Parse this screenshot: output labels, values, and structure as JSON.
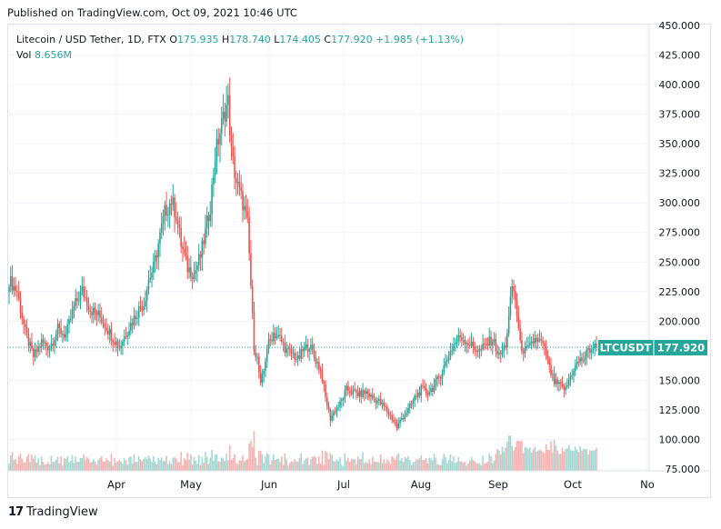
{
  "header": {
    "published": "Published on TradingView.com, Oct 09, 2021 10:46 UTC"
  },
  "legend": {
    "symbol": "Litecoin / USD Tether, 1D, FTX",
    "o_label": "O",
    "o_value": "175.935",
    "h_label": "H",
    "h_value": "178.740",
    "l_label": "L",
    "l_value": "174.405",
    "c_label": "C",
    "c_value": "177.920",
    "change": "+1.985 (+1.13%)",
    "vol_label": "Vol",
    "vol_value": "8.656M"
  },
  "footer": {
    "brand": "TradingView",
    "logo": "17"
  },
  "price_tag": {
    "symbol": "LTCUSDT",
    "price": "177.920"
  },
  "colors": {
    "up": "#26a69a",
    "down": "#ef5350",
    "up_vol": "#a3d9d3",
    "down_vol": "#f5b3b2",
    "grid": "#f0f3fa",
    "tag_bg": "#26a69a"
  },
  "chart_data": {
    "type": "candlestick",
    "ylim": [
      75,
      450
    ],
    "yticks": [
      "75.000",
      "100.000",
      "125.000",
      "150.000",
      "175.000",
      "200.000",
      "225.000",
      "250.000",
      "275.000",
      "300.000",
      "325.000",
      "350.000",
      "375.000",
      "400.000",
      "425.000",
      "450.000"
    ],
    "xlabels": [
      "Apr",
      "May",
      "Jun",
      "Jul",
      "Aug",
      "Sep",
      "Oct",
      "No"
    ],
    "grid": true,
    "last_price": 177.92,
    "anchors": [
      [
        0,
        235
      ],
      [
        5,
        225
      ],
      [
        10,
        190
      ],
      [
        15,
        170
      ],
      [
        20,
        182
      ],
      [
        25,
        178
      ],
      [
        30,
        193
      ],
      [
        35,
        188
      ],
      [
        40,
        212
      ],
      [
        45,
        226
      ],
      [
        50,
        210
      ],
      [
        55,
        205
      ],
      [
        58,
        200
      ],
      [
        63,
        188
      ],
      [
        68,
        178
      ],
      [
        72,
        190
      ],
      [
        76,
        200
      ],
      [
        80,
        210
      ],
      [
        83,
        215
      ],
      [
        86,
        235
      ],
      [
        89,
        245
      ],
      [
        92,
        265
      ],
      [
        96,
        292
      ],
      [
        100,
        302
      ],
      [
        103,
        290
      ],
      [
        106,
        265
      ],
      [
        110,
        245
      ],
      [
        114,
        240
      ],
      [
        118,
        255
      ],
      [
        121,
        275
      ],
      [
        124,
        298
      ],
      [
        127,
        340
      ],
      [
        130,
        360
      ],
      [
        133,
        378
      ],
      [
        135,
        385
      ],
      [
        137,
        342
      ],
      [
        140,
        318
      ],
      [
        144,
        300
      ],
      [
        147,
        282
      ],
      [
        149,
        230
      ],
      [
        151,
        178
      ],
      [
        153,
        168
      ],
      [
        155,
        145
      ],
      [
        157,
        158
      ],
      [
        159,
        178
      ],
      [
        163,
        190
      ],
      [
        167,
        185
      ],
      [
        171,
        175
      ],
      [
        175,
        172
      ],
      [
        178,
        167
      ],
      [
        181,
        175
      ],
      [
        185,
        180
      ],
      [
        188,
        170
      ],
      [
        191,
        162
      ],
      [
        193,
        152
      ],
      [
        195,
        135
      ],
      [
        198,
        118
      ],
      [
        201,
        125
      ],
      [
        204,
        130
      ],
      [
        208,
        142
      ],
      [
        212,
        140
      ],
      [
        216,
        138
      ],
      [
        220,
        140
      ],
      [
        224,
        135
      ],
      [
        228,
        132
      ],
      [
        232,
        126
      ],
      [
        236,
        118
      ],
      [
        239,
        110
      ],
      [
        242,
        118
      ],
      [
        246,
        125
      ],
      [
        250,
        135
      ],
      [
        254,
        142
      ],
      [
        258,
        140
      ],
      [
        262,
        145
      ],
      [
        266,
        155
      ],
      [
        270,
        168
      ],
      [
        274,
        180
      ],
      [
        278,
        187
      ],
      [
        282,
        183
      ],
      [
        286,
        178
      ],
      [
        290,
        175
      ],
      [
        294,
        180
      ],
      [
        298,
        185
      ],
      [
        302,
        170
      ],
      [
        306,
        180
      ],
      [
        308,
        202
      ],
      [
        310,
        230
      ],
      [
        312,
        218
      ],
      [
        315,
        180
      ],
      [
        318,
        174
      ],
      [
        321,
        178
      ],
      [
        324,
        185
      ],
      [
        328,
        182
      ],
      [
        331,
        172
      ],
      [
        333,
        160
      ],
      [
        336,
        148
      ],
      [
        340,
        145
      ],
      [
        343,
        142
      ],
      [
        345,
        150
      ],
      [
        348,
        160
      ],
      [
        351,
        166
      ],
      [
        354,
        168
      ],
      [
        357,
        175
      ],
      [
        360,
        178
      ],
      [
        362,
        178
      ]
    ],
    "volume": {
      "ylim": [
        0,
        60
      ]
    }
  }
}
